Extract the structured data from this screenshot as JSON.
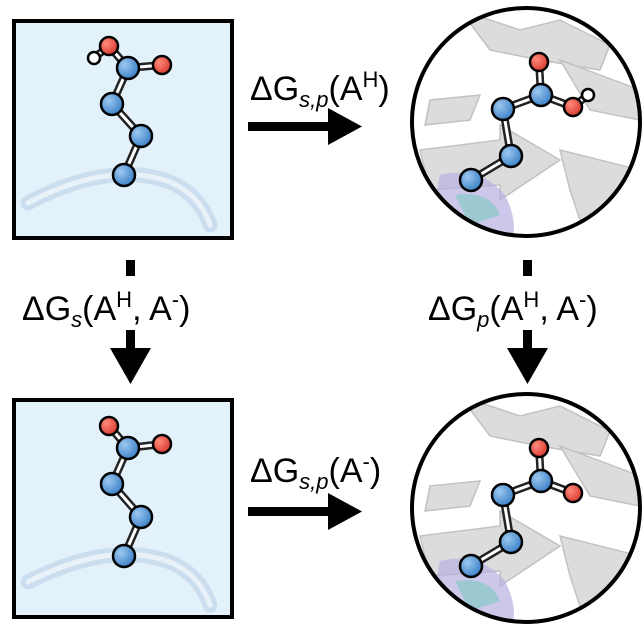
{
  "labels": {
    "top": {
      "delta": "ΔG",
      "sub": "s,p",
      "open": "(A",
      "sup": "H",
      "close": ")"
    },
    "bottom": {
      "delta": "ΔG",
      "sub": "s,p",
      "open": "(A",
      "sup": "-",
      "close": ")"
    },
    "left": {
      "delta": "ΔG",
      "sub": "s",
      "open": "(A",
      "sup1": "H",
      "mid": ", A",
      "sup2": "-",
      "close": ")"
    },
    "right": {
      "delta": "ΔG",
      "sub": "p",
      "open": "(A",
      "sup1": "H",
      "mid": ", A",
      "sup2": "-",
      "close": ")"
    }
  },
  "colors": {
    "box_fill": "#e3f1fb",
    "carbon": "#4a8fd6",
    "oxygen": "#e8473c",
    "hydrogen": "#ffffff",
    "protein": "#d8d8d8",
    "backbone": "#b9d9f2"
  }
}
